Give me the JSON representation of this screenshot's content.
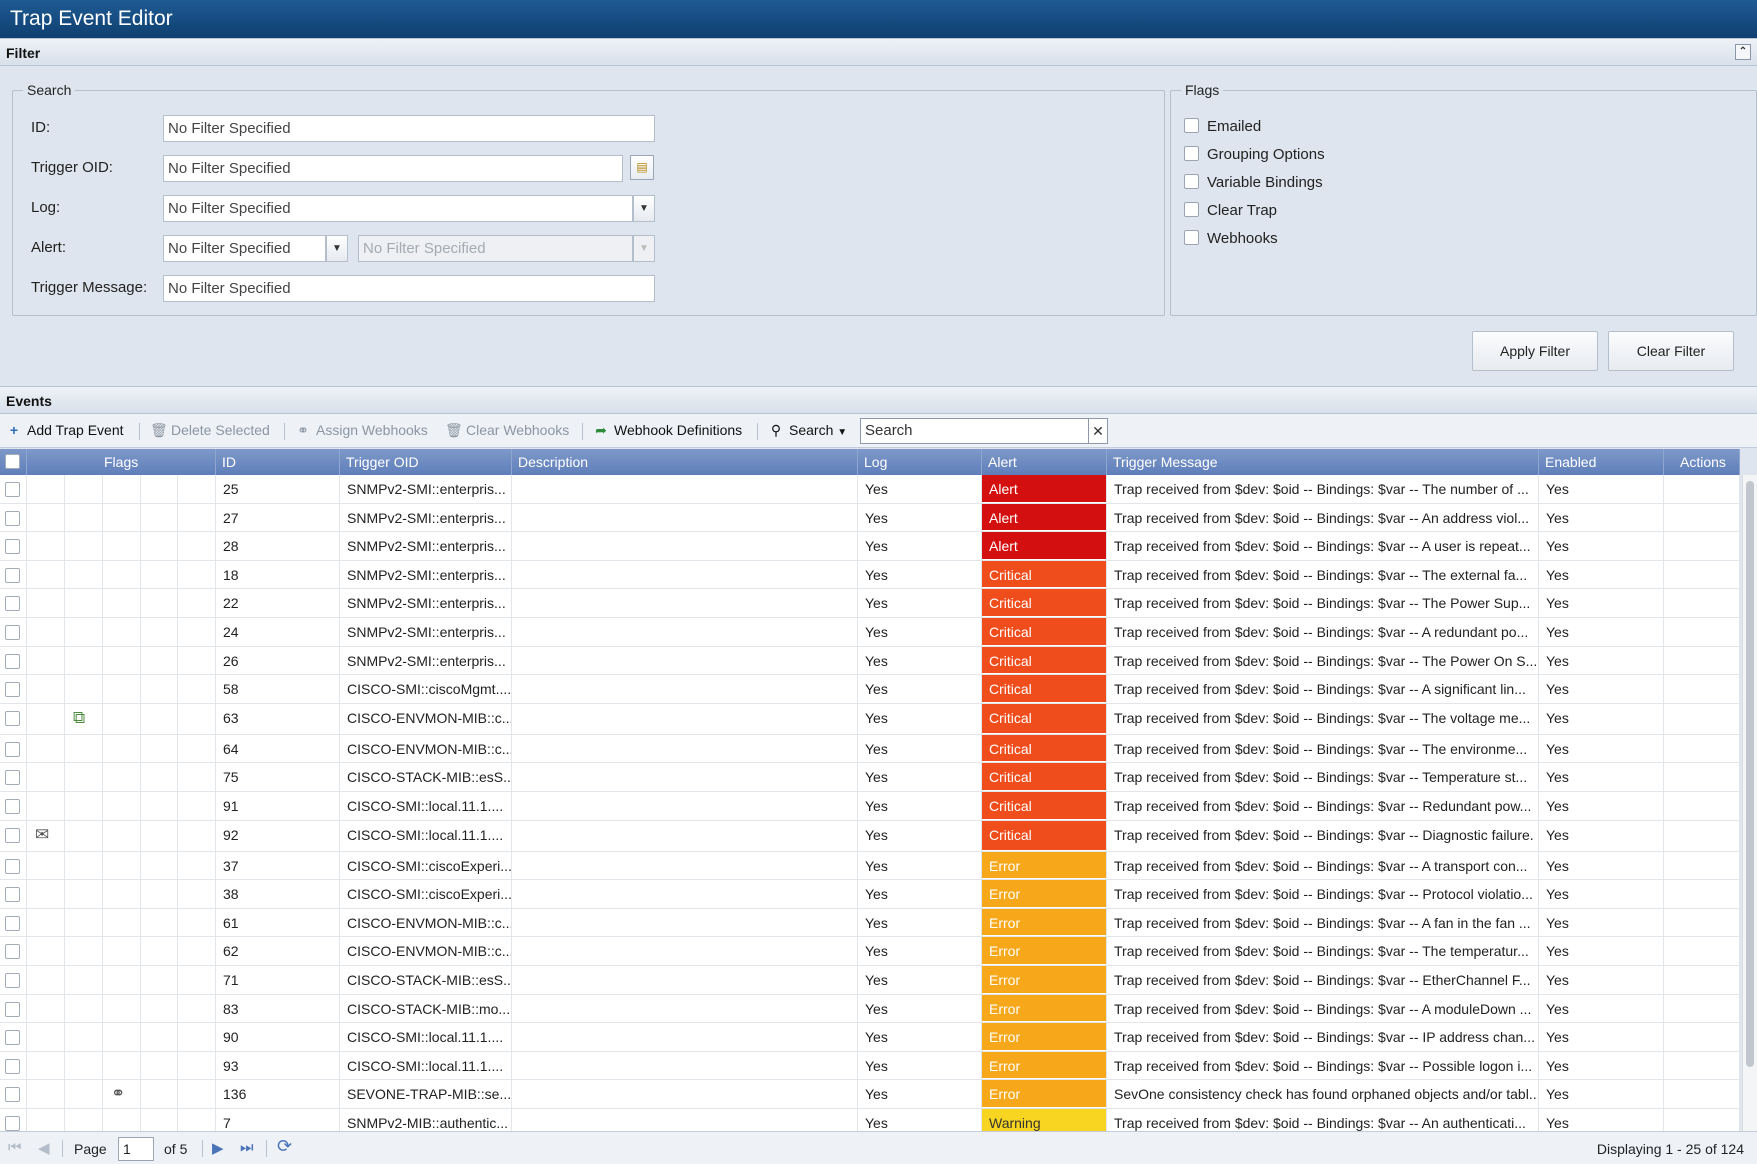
{
  "window": {
    "title": "Trap Event Editor"
  },
  "filter": {
    "header": "Filter",
    "search_legend": "Search",
    "flags_legend": "Flags",
    "labels": {
      "id": "ID:",
      "trigger_oid": "Trigger OID:",
      "log": "Log:",
      "alert": "Alert:",
      "trigger_message": "Trigger Message:"
    },
    "placeholder": "No Filter Specified",
    "flags": [
      "Emailed",
      "Grouping Options",
      "Variable Bindings",
      "Clear Trap",
      "Webhooks"
    ],
    "apply_label": "Apply Filter",
    "clear_label": "Clear Filter"
  },
  "events": {
    "header": "Events",
    "toolbar": {
      "add": "Add Trap Event",
      "delete": "Delete Selected",
      "assign": "Assign Webhooks",
      "clear": "Clear Webhooks",
      "definitions": "Webhook Definitions",
      "search": "Search",
      "search_placeholder": "Search"
    },
    "columns": {
      "flags": "Flags",
      "id": "ID",
      "trigger_oid": "Trigger OID",
      "description": "Description",
      "log": "Log",
      "alert": "Alert",
      "trigger_message": "Trigger Message",
      "enabled": "Enabled",
      "actions": "Actions"
    },
    "alert_colors": {
      "Alert": "#d40f0f",
      "Critical": "#f04d1c",
      "Error": "#f6a81a",
      "Warning": "#f7d520"
    },
    "rows": [
      {
        "flag_icon": "",
        "id": "25",
        "oid": "SNMPv2-SMI::enterpris...",
        "description": "",
        "log": "Yes",
        "alert": "Alert",
        "message": "Trap received from $dev: $oid -- Bindings: $var -- The number of ...",
        "enabled": "Yes"
      },
      {
        "flag_icon": "",
        "id": "27",
        "oid": "SNMPv2-SMI::enterpris...",
        "description": "",
        "log": "Yes",
        "alert": "Alert",
        "message": "Trap received from $dev: $oid -- Bindings: $var -- An address viol...",
        "enabled": "Yes"
      },
      {
        "flag_icon": "",
        "id": "28",
        "oid": "SNMPv2-SMI::enterpris...",
        "description": "",
        "log": "Yes",
        "alert": "Alert",
        "message": "Trap received from $dev: $oid -- Bindings: $var -- A user is repeat...",
        "enabled": "Yes"
      },
      {
        "flag_icon": "",
        "id": "18",
        "oid": "SNMPv2-SMI::enterpris...",
        "description": "",
        "log": "Yes",
        "alert": "Critical",
        "message": "Trap received from $dev: $oid -- Bindings: $var -- The external fa...",
        "enabled": "Yes"
      },
      {
        "flag_icon": "",
        "id": "22",
        "oid": "SNMPv2-SMI::enterpris...",
        "description": "",
        "log": "Yes",
        "alert": "Critical",
        "message": "Trap received from $dev: $oid -- Bindings: $var -- The Power Sup...",
        "enabled": "Yes"
      },
      {
        "flag_icon": "",
        "id": "24",
        "oid": "SNMPv2-SMI::enterpris...",
        "description": "",
        "log": "Yes",
        "alert": "Critical",
        "message": "Trap received from $dev: $oid -- Bindings: $var -- A redundant po...",
        "enabled": "Yes"
      },
      {
        "flag_icon": "",
        "id": "26",
        "oid": "SNMPv2-SMI::enterpris...",
        "description": "",
        "log": "Yes",
        "alert": "Critical",
        "message": "Trap received from $dev: $oid -- Bindings: $var -- The Power On S...",
        "enabled": "Yes"
      },
      {
        "flag_icon": "",
        "id": "58",
        "oid": "CISCO-SMI::ciscoMgmt....",
        "description": "",
        "log": "Yes",
        "alert": "Critical",
        "message": "Trap received from $dev: $oid -- Bindings: $var -- A significant lin...",
        "enabled": "Yes"
      },
      {
        "flag_icon": "grouping",
        "id": "63",
        "oid": "CISCO-ENVMON-MIB::c...",
        "description": "",
        "log": "Yes",
        "alert": "Critical",
        "message": "Trap received from $dev: $oid -- Bindings: $var -- The voltage me...",
        "enabled": "Yes"
      },
      {
        "flag_icon": "",
        "id": "64",
        "oid": "CISCO-ENVMON-MIB::c...",
        "description": "",
        "log": "Yes",
        "alert": "Critical",
        "message": "Trap received from $dev: $oid -- Bindings: $var -- The environme...",
        "enabled": "Yes"
      },
      {
        "flag_icon": "",
        "id": "75",
        "oid": "CISCO-STACK-MIB::esS...",
        "description": "",
        "log": "Yes",
        "alert": "Critical",
        "message": "Trap received from $dev: $oid -- Bindings: $var -- Temperature st...",
        "enabled": "Yes"
      },
      {
        "flag_icon": "",
        "id": "91",
        "oid": "CISCO-SMI::local.11.1....",
        "description": "",
        "log": "Yes",
        "alert": "Critical",
        "message": "Trap received from $dev: $oid -- Bindings: $var -- Redundant pow...",
        "enabled": "Yes"
      },
      {
        "flag_icon": "email",
        "id": "92",
        "oid": "CISCO-SMI::local.11.1....",
        "description": "",
        "log": "Yes",
        "alert": "Critical",
        "message": "Trap received from $dev: $oid -- Bindings: $var -- Diagnostic failure.",
        "enabled": "Yes"
      },
      {
        "flag_icon": "",
        "id": "37",
        "oid": "CISCO-SMI::ciscoExperi...",
        "description": "",
        "log": "Yes",
        "alert": "Error",
        "message": "Trap received from $dev: $oid -- Bindings: $var -- A transport con...",
        "enabled": "Yes"
      },
      {
        "flag_icon": "",
        "id": "38",
        "oid": "CISCO-SMI::ciscoExperi...",
        "description": "",
        "log": "Yes",
        "alert": "Error",
        "message": "Trap received from $dev: $oid -- Bindings: $var -- Protocol violatio...",
        "enabled": "Yes"
      },
      {
        "flag_icon": "",
        "id": "61",
        "oid": "CISCO-ENVMON-MIB::c...",
        "description": "",
        "log": "Yes",
        "alert": "Error",
        "message": "Trap received from $dev: $oid -- Bindings: $var -- A fan in the fan ...",
        "enabled": "Yes"
      },
      {
        "flag_icon": "",
        "id": "62",
        "oid": "CISCO-ENVMON-MIB::c...",
        "description": "",
        "log": "Yes",
        "alert": "Error",
        "message": "Trap received from $dev: $oid -- Bindings: $var -- The temperatur...",
        "enabled": "Yes"
      },
      {
        "flag_icon": "",
        "id": "71",
        "oid": "CISCO-STACK-MIB::esS...",
        "description": "",
        "log": "Yes",
        "alert": "Error",
        "message": "Trap received from $dev: $oid -- Bindings: $var -- EtherChannel F...",
        "enabled": "Yes"
      },
      {
        "flag_icon": "",
        "id": "83",
        "oid": "CISCO-STACK-MIB::mo...",
        "description": "",
        "log": "Yes",
        "alert": "Error",
        "message": "Trap received from $dev: $oid -- Bindings: $var -- A moduleDown ...",
        "enabled": "Yes"
      },
      {
        "flag_icon": "",
        "id": "90",
        "oid": "CISCO-SMI::local.11.1....",
        "description": "",
        "log": "Yes",
        "alert": "Error",
        "message": "Trap received from $dev: $oid -- Bindings: $var -- IP address chan...",
        "enabled": "Yes"
      },
      {
        "flag_icon": "",
        "id": "93",
        "oid": "CISCO-SMI::local.11.1....",
        "description": "",
        "log": "Yes",
        "alert": "Error",
        "message": "Trap received from $dev: $oid -- Bindings: $var -- Possible logon i...",
        "enabled": "Yes"
      },
      {
        "flag_icon": "webhook",
        "id": "136",
        "oid": "SEVONE-TRAP-MIB::se...",
        "description": "",
        "log": "Yes",
        "alert": "Error",
        "message": "SevOne consistency check has found orphaned objects and/or tabl...",
        "enabled": "Yes"
      },
      {
        "flag_icon": "",
        "id": "7",
        "oid": "SNMPv2-MIB::authentic...",
        "description": "",
        "log": "Yes",
        "alert": "Warning",
        "message": "Trap received from $dev: $oid -- Bindings: $var -- An authenticati...",
        "enabled": "Yes"
      }
    ]
  },
  "pager": {
    "page_label": "Page",
    "page_value": "1",
    "of_label": "of 5",
    "displaying": "Displaying 1 - 25 of 124"
  }
}
